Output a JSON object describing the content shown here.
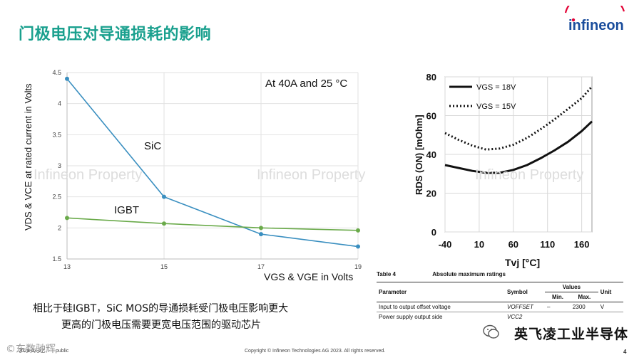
{
  "slide": {
    "title": "门极电压对导通损耗的影响",
    "logo_text": "infineon",
    "page_number": "4",
    "date": "2023-03-27",
    "classification": "public",
    "copyright": "Copyright © Infineon Technologies AG 2023. All rights reserved.",
    "watermark_text": "Infineon Property",
    "bottom_text_line1": "相比于硅IGBT，SiC MOS的导通损耗受门极电压影响更大",
    "bottom_text_line2": "更高的门极电压需要更宽电压范围的驱动芯片",
    "wechat_watermark": "英飞凌工业半导体",
    "corner_watermark": "©东数驰辉"
  },
  "colors": {
    "title_green": "#1aa08e",
    "sic_line": "#3a8fc0",
    "igbt_line": "#6aaa4a",
    "logo_red": "#e30034",
    "logo_blue": "#1a4d9c"
  },
  "chart_data": [
    {
      "type": "line",
      "annotation": "At 40A and 25 °C",
      "ylabel": "VDS & VCE at rated current in Volts",
      "xlabel": "VGS & VGE in Volts",
      "x": [
        13,
        15,
        17,
        19
      ],
      "x_ticks": [
        "13",
        "15",
        "17",
        "19"
      ],
      "y_ticks": [
        "1.5",
        "2",
        "2.5",
        "3",
        "3.5",
        "4",
        "4.5"
      ],
      "xlim": [
        13,
        19
      ],
      "ylim": [
        1.5,
        4.5
      ],
      "grid": true,
      "series": [
        {
          "name": "SiC",
          "values": [
            4.4,
            2.5,
            1.9,
            1.7
          ]
        },
        {
          "name": "IGBT",
          "values": [
            2.16,
            2.07,
            2.0,
            1.96
          ]
        }
      ]
    },
    {
      "type": "line",
      "ylabel": "RDS (ON) [mOhm]",
      "xlabel": "Tvj [°C]",
      "x_ticks": [
        "-40",
        "10",
        "60",
        "110",
        "160"
      ],
      "y_ticks": [
        "0",
        "20",
        "40",
        "60",
        "80"
      ],
      "xlim": [
        -40,
        175
      ],
      "ylim": [
        0,
        80
      ],
      "grid": true,
      "legend": "top-left",
      "series": [
        {
          "name": "VGS = 18V",
          "style": "solid",
          "x": [
            -40,
            -20,
            0,
            20,
            40,
            60,
            80,
            100,
            120,
            140,
            160,
            175
          ],
          "values": [
            34.5,
            33,
            31.5,
            30.5,
            30.5,
            32,
            34.5,
            38,
            42,
            46.5,
            52,
            57
          ]
        },
        {
          "name": "VGS = 15V",
          "style": "dotted",
          "x": [
            -40,
            -20,
            0,
            20,
            40,
            60,
            80,
            100,
            120,
            140,
            160,
            175
          ],
          "values": [
            51,
            47.5,
            44.5,
            42.5,
            43,
            45,
            48.5,
            53,
            58,
            63.5,
            69,
            75
          ]
        }
      ]
    }
  ],
  "table": {
    "caption_number": "Table 4",
    "caption_title": "Absolute maximum ratings",
    "headers": {
      "parameter": "Parameter",
      "symbol": "Symbol",
      "values": "Values",
      "min": "Min.",
      "max": "Max.",
      "unit": "Unit"
    },
    "rows": [
      {
        "parameter": "Input to output offset voltage",
        "symbol": "VOFFSET",
        "min": "–",
        "max": "2300",
        "unit": "V"
      },
      {
        "parameter": "Power supply output side",
        "symbol": "VCC2",
        "min": "",
        "max": "",
        "unit": ""
      }
    ]
  }
}
